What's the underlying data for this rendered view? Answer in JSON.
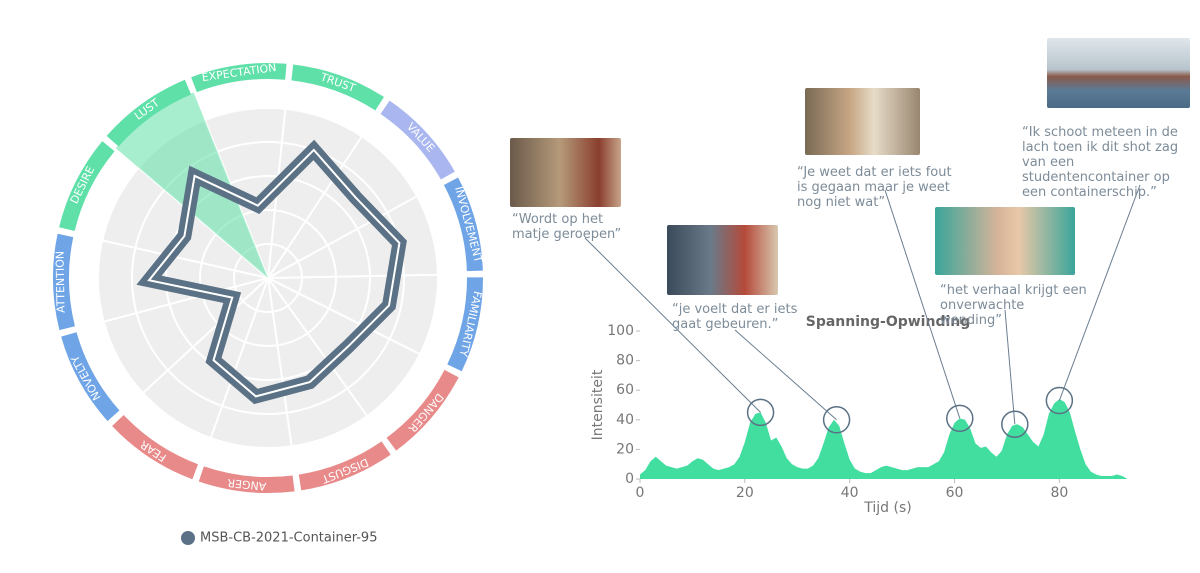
{
  "chart_data": [
    {
      "type": "radar",
      "categories": [
        "EXPECTATION",
        "TRUST",
        "VALUE",
        "INVOLVEMENT",
        "FAMILIARITY",
        "DANGER",
        "DISGUST",
        "ANGER",
        "FEAR",
        "NOVELTY",
        "ATTENTION",
        "DESIRE",
        "LUST"
      ],
      "category_colors": [
        "#5fe0a8",
        "#5fe0a8",
        "#a9b6f0",
        "#6fa4e6",
        "#6fa4e6",
        "#e88a8a",
        "#e88a8a",
        "#e88a8a",
        "#e88a8a",
        "#6fa4e6",
        "#6fa4e6",
        "#5fe0a8",
        "#5fe0a8"
      ],
      "highlight_index": 12,
      "rlim": [
        0,
        100
      ],
      "rticks": [
        20,
        40,
        60,
        80,
        100
      ],
      "series": [
        {
          "name": "MSB-CB-2021-Container-95",
          "color": "#5b7185",
          "values": [
            43,
            80,
            70,
            80,
            73,
            62,
            66,
            70,
            58,
            24,
            70,
            55,
            74
          ]
        }
      ]
    },
    {
      "type": "area",
      "title": "Spanning-Opwinding",
      "xlabel": "Tijd (s)",
      "ylabel": "Intensiteit",
      "xlim": [
        0,
        95
      ],
      "ylim": [
        0,
        100
      ],
      "xticks": [
        0,
        20,
        40,
        60,
        80
      ],
      "yticks": [
        0,
        20,
        40,
        60,
        80,
        100
      ],
      "color": "#41dea0",
      "x": [
        0,
        1,
        2,
        3,
        4,
        5,
        6,
        7,
        8,
        9,
        10,
        11,
        12,
        13,
        14,
        15,
        16,
        17,
        18,
        19,
        20,
        21,
        22,
        23,
        24,
        25,
        26,
        27,
        28,
        29,
        30,
        31,
        32,
        33,
        34,
        35,
        36,
        37,
        38,
        39,
        40,
        41,
        42,
        43,
        44,
        45,
        46,
        47,
        48,
        49,
        50,
        51,
        52,
        53,
        54,
        55,
        56,
        57,
        58,
        59,
        60,
        61,
        62,
        63,
        64,
        65,
        66,
        67,
        68,
        69,
        70,
        71,
        72,
        73,
        74,
        75,
        76,
        77,
        78,
        79,
        80,
        81,
        82,
        83,
        84,
        85,
        86,
        87,
        88,
        89,
        90,
        91,
        92,
        93
      ],
      "values": [
        3,
        6,
        12,
        15,
        12,
        9,
        8,
        7,
        8,
        9,
        12,
        14,
        13,
        10,
        7,
        6,
        7,
        8,
        10,
        15,
        25,
        38,
        44,
        45,
        38,
        26,
        28,
        22,
        14,
        10,
        8,
        7,
        7,
        9,
        14,
        24,
        35,
        40,
        36,
        24,
        13,
        7,
        5,
        4,
        4,
        6,
        8,
        9,
        8,
        7,
        6,
        6,
        7,
        8,
        8,
        8,
        10,
        12,
        18,
        30,
        38,
        41,
        40,
        34,
        24,
        21,
        22,
        18,
        15,
        19,
        30,
        36,
        37,
        35,
        30,
        25,
        22,
        30,
        44,
        51,
        54,
        52,
        45,
        32,
        20,
        10,
        5,
        3,
        2,
        2,
        2,
        3,
        2,
        0
      ],
      "annotations": [
        {
          "text": "“Wordt op het matje geroepen”",
          "x": 23,
          "y": 45
        },
        {
          "text": "“je voelt dat er iets gaat gebeuren.”",
          "x": 37.5,
          "y": 40
        },
        {
          "text": "“Je weet dat er iets fout is gegaan maar je weet nog niet wat”",
          "x": 61,
          "y": 41
        },
        {
          "text": "“het verhaal krijgt een onverwachte wending”",
          "x": 71.5,
          "y": 37
        },
        {
          "text": "“Ik schoot meteen in de lach toen ik dit shot zag van een studentencontainer op een containerschip.”",
          "x": 80,
          "y": 53
        }
      ]
    }
  ]
}
